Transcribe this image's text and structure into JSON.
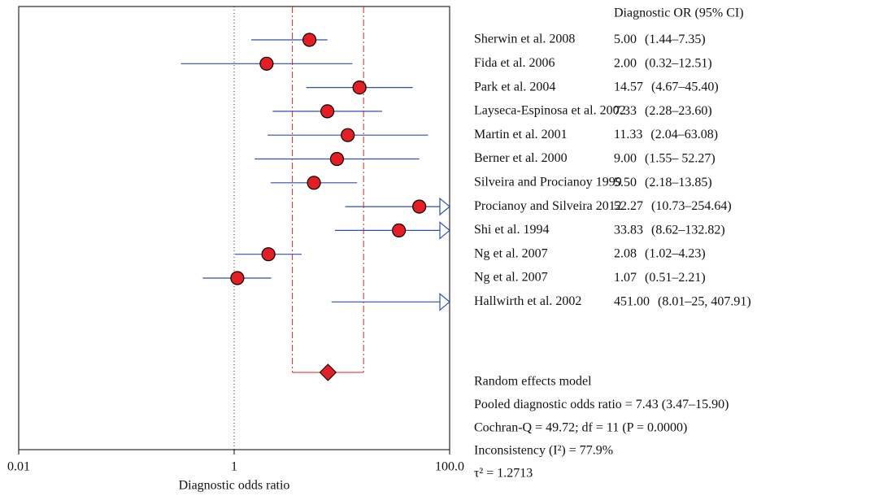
{
  "chart_data": {
    "type": "forest",
    "column_header": "Diagnostic OR (95% CI)",
    "xlabel": "Diagnostic odds ratio",
    "log_x": true,
    "xlim": [
      0.01,
      100
    ],
    "xticks": [
      0.01,
      1,
      {
        "value": 100,
        "label": "100.0"
      }
    ],
    "null_line": 1,
    "point_color": "#e31e24",
    "line_color": "#2f4fb0",
    "pooled_color": "#e31e24",
    "categories": [
      "Sherwin et al. 2008",
      "Fida et al. 2006",
      "Park et al. 2004",
      "Layseca-Espinosa et al. 2002",
      "Martin et al. 2001",
      "Berner et al. 2000",
      "Silveira and Procianoy 1999",
      "Procianoy and Silveira 2012",
      "Shi et al. 1994",
      "Ng et al. 2007",
      "Ng et al. 2007",
      "Hallwirth et al. 2002"
    ],
    "values": [
      5,
      2,
      14.57,
      7.33,
      11.33,
      9,
      5.5,
      52.27,
      33.83,
      2.08,
      1.07,
      451
    ],
    "value_labels": [
      "5.00",
      "2.00",
      "14.57",
      "7.33",
      "11.33",
      "9.00",
      "5.50",
      "52.27",
      "33.83",
      "2.08",
      "1.07",
      "451.00"
    ],
    "lower": [
      1.44,
      0.32,
      4.67,
      2.28,
      2.04,
      1.55,
      2.18,
      10.73,
      8.62,
      1.02,
      0.51,
      8.01
    ],
    "upper": [
      7.35,
      12.51,
      45.4,
      23.6,
      63.08,
      52.27,
      13.85,
      254.64,
      132.82,
      4.23,
      2.21,
      25407.91
    ],
    "ci_labels": [
      "(1.44–7.35)",
      "(0.32–12.51)",
      "(4.67–45.40)",
      "(2.28–23.60)",
      "(2.04–63.08)",
      "(1.55– 52.27)",
      "(2.18–13.85)",
      "(10.73–254.64)",
      "(8.62–132.82)",
      "(1.02–4.23)",
      "(0.51–2.21)",
      "(8.01–25, 407.91)"
    ],
    "pooled": {
      "title": "Random effects model",
      "prefix": "Pooled diagnostic odds ratio =",
      "value": 7.43,
      "value_label": "7.43",
      "lower": 3.47,
      "upper": 15.9,
      "ci_label": "(3.47–15.90)"
    },
    "annotations": [
      "Cochran-Q = 49.72; df = 11 (P = 0.0000)",
      "Inconsistency (I²) = 77.9%",
      "τ² = 1.2713"
    ]
  }
}
